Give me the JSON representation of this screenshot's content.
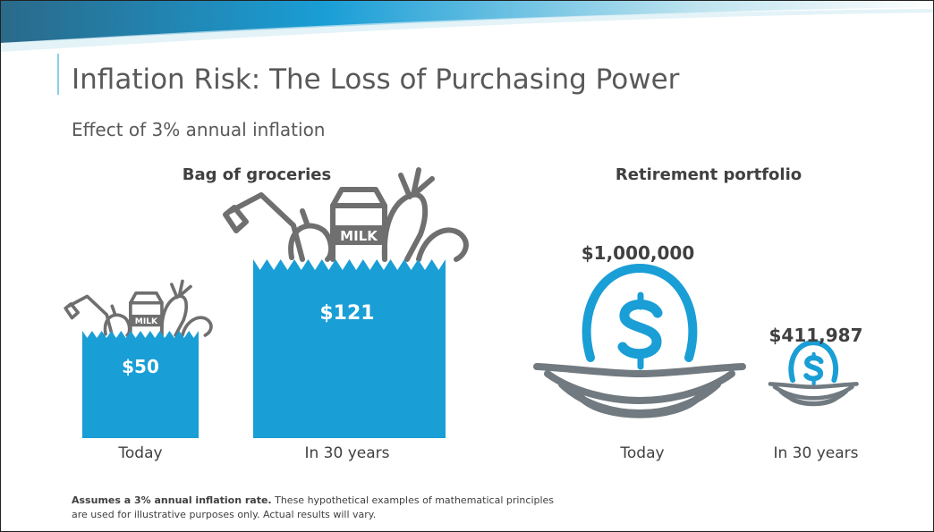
{
  "header": {
    "title": "Inflation Risk: The Loss of Purchasing Power",
    "subtitle": "Effect of 3% annual inflation"
  },
  "groceries": {
    "heading": "Bag of groceries",
    "milk_label": "MILK",
    "items": [
      {
        "value": "$50",
        "label": "Today"
      },
      {
        "value": "$121",
        "label": "In 30 years"
      }
    ]
  },
  "portfolio": {
    "heading": "Retirement portfolio",
    "items": [
      {
        "value": "$1,000,000",
        "label": "Today"
      },
      {
        "value": "$411,987",
        "label": "In 30 years"
      }
    ]
  },
  "footnote": {
    "bold": "Assumes a 3% annual inflation rate.",
    "text": "These hypothetical examples of mathematical principles",
    "text2": "are used for illustrative purposes only. Actual results will vary."
  }
}
